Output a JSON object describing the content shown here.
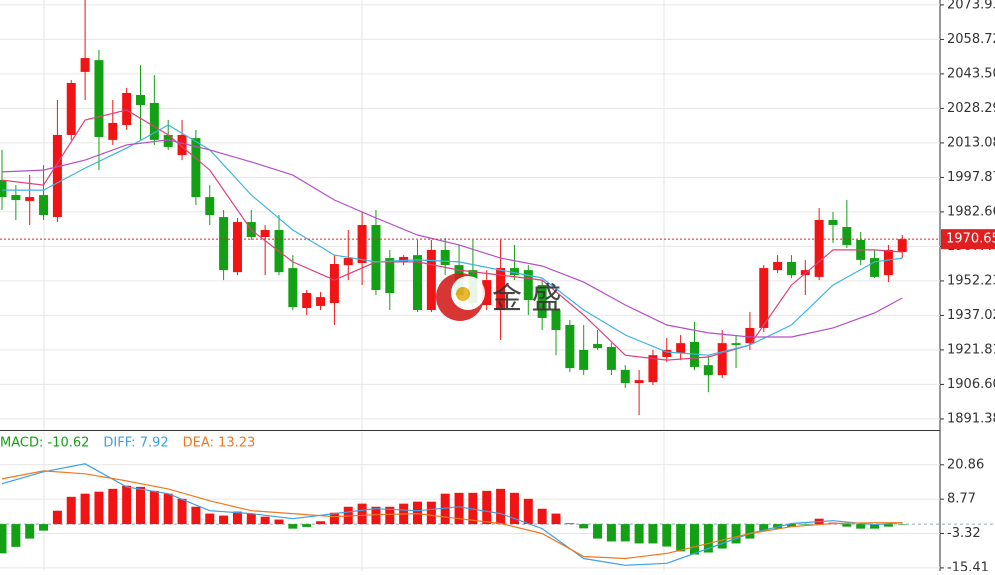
{
  "chart_data": [
    {
      "type": "candlestick",
      "up_color": "#f01414",
      "down_color": "#14a014",
      "open": [
        1996.7,
        1990.1,
        1987.5,
        1990.1,
        1980.4,
        2016.6,
        2044.4,
        2049.6,
        2014.4,
        2021.0,
        2034.2,
        2030.7,
        2016.6,
        2007.7,
        2015.2,
        1989.2,
        1980.4,
        1956.1,
        1978.2,
        1971.6,
        1974.7,
        1957.9,
        1940.3,
        1941.2,
        1942.5,
        1959.2,
        1960.1,
        1976.9,
        1962.3,
        1960.6,
        1963.6,
        1939.4,
        1965.9,
        1959.2,
        1957.0,
        1941.6,
        1939.4,
        1957.9,
        1957.0,
        1950.4,
        1939.4,
        1932.8,
        1921.8,
        1924.4,
        1923.1,
        1913.0,
        1907.2,
        1907.6,
        1918.7,
        1920.4,
        1925.3,
        1915.1,
        1910.7,
        1924.8,
        1924.8,
        1931.5,
        1957.0,
        1960.6,
        1954.8,
        1954.0,
        1979.1,
        1976.0,
        1970.3,
        1962.3,
        1954.8,
        1965.0
      ],
      "high": [
        2010.0,
        1994.5,
        1998.9,
        2003.3,
        2032.0,
        2040.8,
        2076.1,
        2054.1,
        2032.0,
        2037.3,
        2047.4,
        2043.0,
        2023.2,
        2023.2,
        2018.8,
        1994.5,
        1983.5,
        1980.0,
        1983.5,
        1976.9,
        1981.3,
        1963.6,
        1948.2,
        1947.3,
        1963.6,
        1974.7,
        1982.6,
        1983.5,
        1965.9,
        1963.6,
        1970.3,
        1970.3,
        1971.1,
        1968.1,
        1970.3,
        1957.0,
        1970.3,
        1968.1,
        1959.2,
        1952.6,
        1943.8,
        1935.0,
        1932.8,
        1930.6,
        1924.8,
        1915.1,
        1913.0,
        1921.8,
        1927.1,
        1928.4,
        1934.1,
        1919.5,
        1930.6,
        1928.4,
        1938.5,
        1959.2,
        1963.6,
        1963.6,
        1961.4,
        1984.4,
        1982.6,
        1987.9,
        1973.8,
        1965.9,
        1968.1,
        1972.5
      ],
      "low": [
        1983.5,
        1979.1,
        1976.9,
        1979.1,
        1978.2,
        2014.4,
        2032.0,
        2001.1,
        2012.2,
        2018.8,
        2014.4,
        2012.2,
        2010.0,
        2005.5,
        1985.7,
        1976.9,
        1952.6,
        1954.8,
        1970.3,
        1954.8,
        1954.8,
        1939.4,
        1937.2,
        1939.4,
        1932.8,
        1952.6,
        1950.4,
        1946.0,
        1939.4,
        1959.2,
        1938.5,
        1938.5,
        1954.8,
        1941.6,
        1939.4,
        1939.4,
        1926.2,
        1952.6,
        1937.2,
        1930.6,
        1919.5,
        1912.0,
        1910.7,
        1921.8,
        1910.7,
        1905.0,
        1893.1,
        1906.3,
        1916.5,
        1917.3,
        1912.9,
        1903.2,
        1909.4,
        1913.8,
        1921.8,
        1929.7,
        1955.7,
        1953.5,
        1946.0,
        1952.6,
        1969.0,
        1966.8,
        1959.2,
        1953.5,
        1951.7,
        1962.3
      ],
      "close": [
        1989.2,
        1987.9,
        1989.2,
        1981.3,
        2016.6,
        2039.5,
        2050.5,
        2015.7,
        2021.9,
        2035.1,
        2029.8,
        2014.4,
        2011.3,
        2016.6,
        1989.2,
        1981.3,
        1957.0,
        1978.2,
        1971.6,
        1974.7,
        1956.1,
        1940.7,
        1946.9,
        1945.1,
        1959.7,
        1962.3,
        1976.9,
        1948.2,
        1946.9,
        1962.8,
        1939.4,
        1965.9,
        1959.2,
        1946.0,
        1942.5,
        1952.6,
        1957.9,
        1954.8,
        1943.8,
        1935.9,
        1930.6,
        1913.8,
        1913.0,
        1922.6,
        1913.0,
        1907.2,
        1908.5,
        1919.5,
        1921.8,
        1924.8,
        1914.3,
        1910.7,
        1924.8,
        1924.0,
        1931.5,
        1957.9,
        1960.6,
        1954.8,
        1957.0,
        1979.1,
        1976.9,
        1968.1,
        1961.5,
        1954.0,
        1965.9,
        1970.65
      ],
      "lines": [
        {
          "color": "#e0407a",
          "x": [
            0,
            3,
            6,
            9,
            12,
            15,
            18,
            21,
            24,
            27,
            30,
            33,
            36,
            39,
            42,
            45,
            48,
            51,
            54,
            57,
            60,
            63,
            65
          ],
          "values": [
            1996.7,
            1994.5,
            2023.2,
            2027.6,
            2016.6,
            2001.1,
            1974.7,
            1960.6,
            1952.6,
            1960.6,
            1960.6,
            1957.0,
            1954.8,
            1952.6,
            1937.2,
            1919.5,
            1917.3,
            1918.7,
            1924.0,
            1950.4,
            1965.9,
            1965.9,
            1965.0
          ]
        },
        {
          "color": "#3cb4e6",
          "x": [
            0,
            3,
            6,
            9,
            12,
            15,
            18,
            21,
            24,
            27,
            30,
            33,
            36,
            39,
            42,
            45,
            48,
            51,
            54,
            57,
            60,
            63,
            65
          ],
          "values": [
            1992.3,
            1992.3,
            2002.0,
            2010.8,
            2021.0,
            2010.0,
            1990.1,
            1974.7,
            1963.6,
            1960.6,
            1961.5,
            1960.6,
            1957.0,
            1953.5,
            1939.4,
            1928.4,
            1920.9,
            1919.5,
            1924.0,
            1932.8,
            1950.4,
            1960.6,
            1962.3
          ]
        },
        {
          "color": "#b450c8",
          "x": [
            0,
            3,
            6,
            9,
            12,
            15,
            18,
            21,
            24,
            27,
            30,
            33,
            36,
            39,
            42,
            45,
            48,
            51,
            54,
            57,
            60,
            63,
            65
          ],
          "values": [
            2000.3,
            2001.1,
            2005.5,
            2012.2,
            2014.4,
            2010.0,
            2004.7,
            1998.9,
            1987.9,
            1980.0,
            1972.5,
            1968.1,
            1962.3,
            1958.8,
            1951.7,
            1941.6,
            1932.8,
            1929.3,
            1927.5,
            1927.5,
            1931.5,
            1938.1,
            1944.7
          ]
        }
      ],
      "last_price": 1970.65,
      "ylim": [
        1886.5,
        2076.1
      ],
      "yticks": [
        2073.93,
        2058.72,
        {
          "value": 2043.5,
          "label": "2043.50"
        },
        2028.29,
        2013.08,
        1997.87,
        1982.66,
        1967.44,
        1952.23,
        1937.02,
        1921.81,
        {
          "value": 1906.6,
          "label": "1906.60"
        },
        1891.38
      ],
      "grid": true,
      "watermark": "金 盛"
    },
    {
      "type": "macd",
      "up_color": "#f01414",
      "down_color": "#14a014",
      "histogram": [
        -10.3,
        -8.0,
        -5.1,
        -2.3,
        4.7,
        9.6,
        10.7,
        11.4,
        12.4,
        13.5,
        13.1,
        11.7,
        10.7,
        8.9,
        6.1,
        3.7,
        3.0,
        4.4,
        3.7,
        2.6,
        1.6,
        -1.6,
        -1.0,
        1.0,
        4.0,
        6.1,
        7.2,
        6.1,
        6.1,
        7.2,
        7.9,
        7.9,
        10.7,
        11.0,
        11.0,
        11.7,
        12.4,
        11.0,
        8.9,
        5.4,
        3.7,
        0.3,
        -1.5,
        -5.1,
        -6.1,
        -6.1,
        -6.8,
        -6.8,
        -7.9,
        -9.6,
        -10.7,
        -10.0,
        -8.6,
        -6.8,
        -5.1,
        -2.3,
        -1.6,
        -0.9,
        -0.2,
        1.9,
        0.5,
        -0.9,
        -1.6,
        -1.6,
        -0.9,
        -0.2
      ],
      "lines": [
        {
          "color": "#3ca0e6",
          "x": [
            0,
            3,
            6,
            9,
            12,
            15,
            18,
            21,
            24,
            27,
            30,
            33,
            36,
            39,
            42,
            45,
            48,
            51,
            54,
            57,
            60,
            63,
            65
          ],
          "values": [
            14.2,
            18.4,
            21.2,
            13.1,
            10.7,
            4.7,
            3.7,
            1.9,
            3.7,
            5.4,
            4.7,
            6.1,
            3.7,
            -1.6,
            -12.1,
            -14.5,
            -13.8,
            -8.6,
            -3.3,
            0.2,
            1.2,
            -0.2,
            0.5
          ]
        },
        {
          "color": "#f07820",
          "x": [
            0,
            3,
            6,
            9,
            12,
            15,
            18,
            21,
            24,
            27,
            30,
            33,
            36,
            39,
            42,
            45,
            48,
            51,
            54,
            57,
            60,
            63,
            65
          ],
          "values": [
            15.9,
            18.7,
            17.7,
            15.2,
            12.4,
            8.2,
            4.7,
            3.7,
            2.6,
            3.3,
            3.7,
            1.9,
            0.2,
            -3.3,
            -11.4,
            -12.1,
            -10.3,
            -6.8,
            -3.3,
            -0.9,
            0.2,
            0.5,
            0.5
          ]
        }
      ],
      "labels": [
        {
          "text": "MACD: -10.62",
          "color": "#14a014"
        },
        {
          "text": "DIFF: 7.92",
          "color": "#3ca0e6"
        },
        {
          "text": "DEA: 13.23",
          "color": "#f07820"
        }
      ],
      "ylim": [
        -16.5,
        32.4
      ],
      "yticks": [
        20.86,
        8.77,
        -3.32,
        -15.41
      ],
      "grid": true
    }
  ]
}
